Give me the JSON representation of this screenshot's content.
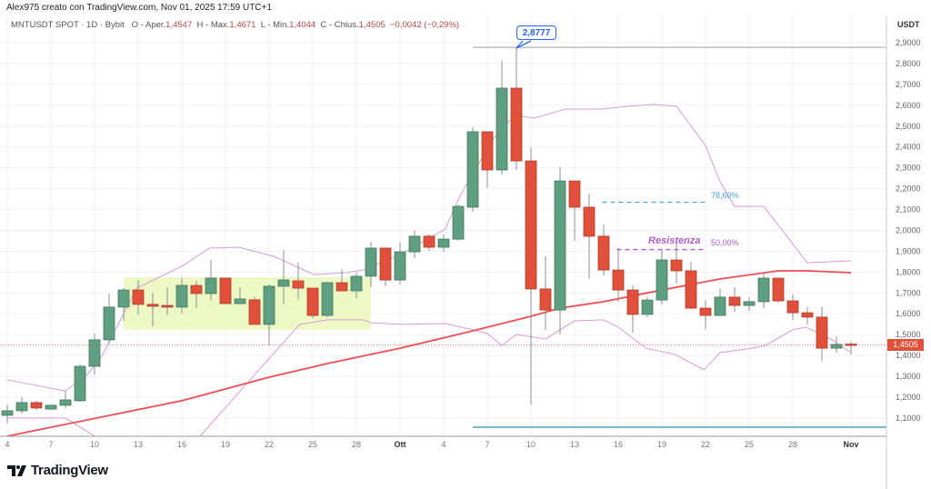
{
  "header": {
    "caption": "Alex975 creato con TradingView.com, Nov 01, 2025 17:59 UTC+1"
  },
  "legend": {
    "symbol": "MNTUSDT SPOT · 1D · Bybit",
    "open_label": "O - Aper.",
    "open": "1,4547",
    "high_label": "H - Max.",
    "high": "1,4671",
    "low_label": "L - Min.",
    "low": "1,4044",
    "close_label": "C - Chius.",
    "close": "1,4505",
    "change": "−0,0042 (−0,29%)"
  },
  "axis": {
    "unit": "USDT",
    "current_price": "1,4505"
  },
  "annotations": {
    "high_callout": "2,8777",
    "fib_786": "78,60%",
    "fib_50": "50,00%",
    "resistance": "Resistenza"
  },
  "footer": {
    "brand": "TradingView"
  },
  "colors": {
    "up": "#5f9e80",
    "down": "#e0503a",
    "ma": "#ef4d55",
    "bands": "#d89ad8",
    "fib786": "#4ba3d9",
    "fib50": "#b05cc8",
    "box": "#eef8c4",
    "blue_line": "#1e8fb0"
  },
  "chart_data": {
    "type": "candlestick",
    "x_unit": "days since Sep 4, 2025",
    "ylim": [
      1.0,
      2.95
    ],
    "y_ticks": [
      "2,9000",
      "2,8000",
      "2,7000",
      "2,6000",
      "2,5000",
      "2,4000",
      "2,3000",
      "2,2000",
      "2,1000",
      "2,0000",
      "1,9000",
      "1,8000",
      "1,7000",
      "1,6000",
      "1,5000",
      "1,4000",
      "1,3000",
      "1,2000",
      "1,1000"
    ],
    "y_tick_values": [
      2.9,
      2.8,
      2.7,
      2.6,
      2.5,
      2.4,
      2.3,
      2.2,
      2.1,
      2.0,
      1.9,
      1.8,
      1.7,
      1.6,
      1.5,
      1.4,
      1.3,
      1.2,
      1.1
    ],
    "x_ticks": [
      {
        "day": 0,
        "label": "4"
      },
      {
        "day": 3,
        "label": "7"
      },
      {
        "day": 6,
        "label": "10"
      },
      {
        "day": 9,
        "label": "13"
      },
      {
        "day": 12,
        "label": "16"
      },
      {
        "day": 15,
        "label": "19"
      },
      {
        "day": 18,
        "label": "22"
      },
      {
        "day": 21,
        "label": "25"
      },
      {
        "day": 24,
        "label": "28"
      },
      {
        "day": 27,
        "label": "Ott"
      },
      {
        "day": 30,
        "label": "4"
      },
      {
        "day": 33,
        "label": "7"
      },
      {
        "day": 36,
        "label": "10"
      },
      {
        "day": 39,
        "label": "13"
      },
      {
        "day": 42,
        "label": "16"
      },
      {
        "day": 45,
        "label": "19"
      },
      {
        "day": 48,
        "label": "22"
      },
      {
        "day": 51,
        "label": "25"
      },
      {
        "day": 54,
        "label": "28"
      },
      {
        "day": 58,
        "label": "Nov"
      }
    ],
    "candles": [
      [
        1.113,
        1.165,
        1.074,
        1.135
      ],
      [
        1.135,
        1.2,
        1.122,
        1.174
      ],
      [
        1.174,
        1.183,
        1.139,
        1.148
      ],
      [
        1.143,
        1.165,
        1.139,
        1.161
      ],
      [
        1.161,
        1.23,
        1.148,
        1.187
      ],
      [
        1.183,
        1.357,
        1.178,
        1.348
      ],
      [
        1.348,
        1.505,
        1.309,
        1.475
      ],
      [
        1.475,
        1.697,
        1.457,
        1.632
      ],
      [
        1.632,
        1.723,
        1.566,
        1.714
      ],
      [
        1.714,
        1.762,
        1.597,
        1.645
      ],
      [
        1.645,
        1.701,
        1.54,
        1.636
      ],
      [
        1.64,
        1.727,
        1.593,
        1.632
      ],
      [
        1.632,
        1.771,
        1.601,
        1.736
      ],
      [
        1.736,
        1.758,
        1.627,
        1.697
      ],
      [
        1.697,
        1.858,
        1.666,
        1.771
      ],
      [
        1.771,
        1.771,
        1.645,
        1.649
      ],
      [
        1.649,
        1.727,
        1.645,
        1.671
      ],
      [
        1.667,
        1.68,
        1.549,
        1.549
      ],
      [
        1.549,
        1.741,
        1.448,
        1.732
      ],
      [
        1.732,
        1.906,
        1.645,
        1.762
      ],
      [
        1.758,
        1.845,
        1.671,
        1.723
      ],
      [
        1.723,
        1.723,
        1.579,
        1.592
      ],
      [
        1.592,
        1.754,
        1.583,
        1.749
      ],
      [
        1.749,
        1.815,
        1.71,
        1.71
      ],
      [
        1.71,
        1.797,
        1.675,
        1.78
      ],
      [
        1.78,
        1.945,
        1.727,
        1.915
      ],
      [
        1.915,
        1.915,
        1.732,
        1.762
      ],
      [
        1.762,
        1.941,
        1.741,
        1.897
      ],
      [
        1.897,
        1.998,
        1.867,
        1.972
      ],
      [
        1.972,
        1.98,
        1.902,
        1.919
      ],
      [
        1.919,
        1.98,
        1.897,
        1.958
      ],
      [
        1.958,
        2.124,
        1.95,
        2.115
      ],
      [
        2.111,
        2.495,
        2.089,
        2.473
      ],
      [
        2.473,
        2.473,
        2.203,
        2.29
      ],
      [
        2.29,
        2.813,
        2.268,
        2.682
      ],
      [
        2.682,
        2.8777,
        2.29,
        2.333
      ],
      [
        2.333,
        2.399,
        1.165,
        1.719
      ],
      [
        1.719,
        1.876,
        1.523,
        1.618
      ],
      [
        1.618,
        2.303,
        1.501,
        2.237
      ],
      [
        2.237,
        2.237,
        1.95,
        2.111
      ],
      [
        2.111,
        2.176,
        1.767,
        1.972
      ],
      [
        1.972,
        2.028,
        1.784,
        1.81
      ],
      [
        1.81,
        1.915,
        1.658,
        1.714
      ],
      [
        1.714,
        1.736,
        1.509,
        1.597
      ],
      [
        1.597,
        1.68,
        1.584,
        1.666
      ],
      [
        1.666,
        1.906,
        1.645,
        1.858
      ],
      [
        1.858,
        1.937,
        1.745,
        1.806
      ],
      [
        1.806,
        1.849,
        1.623,
        1.627
      ],
      [
        1.627,
        1.666,
        1.527,
        1.592
      ],
      [
        1.592,
        1.719,
        1.592,
        1.68
      ],
      [
        1.68,
        1.727,
        1.61,
        1.64
      ],
      [
        1.64,
        1.68,
        1.614,
        1.658
      ],
      [
        1.658,
        1.797,
        1.627,
        1.771
      ],
      [
        1.771,
        1.771,
        1.653,
        1.662
      ],
      [
        1.662,
        1.693,
        1.571,
        1.605
      ],
      [
        1.605,
        1.631,
        1.549,
        1.584
      ],
      [
        1.584,
        1.636,
        1.374,
        1.435
      ],
      [
        1.435,
        1.492,
        1.413,
        1.453
      ],
      [
        1.4547,
        1.4671,
        1.4044,
        1.4505
      ]
    ],
    "ma": [
      [
        0,
        1.013
      ],
      [
        12,
        1.183
      ],
      [
        18,
        1.296
      ],
      [
        22,
        1.361
      ],
      [
        27,
        1.435
      ],
      [
        32,
        1.518
      ],
      [
        36,
        1.588
      ],
      [
        38,
        1.627
      ],
      [
        41,
        1.658
      ],
      [
        45,
        1.714
      ],
      [
        49,
        1.767
      ],
      [
        53,
        1.806
      ],
      [
        55,
        1.806
      ],
      [
        58,
        1.797
      ]
    ],
    "upper_band": [
      [
        0,
        1.283
      ],
      [
        4,
        1.23
      ],
      [
        5.5,
        1.309
      ],
      [
        6.5,
        1.396
      ],
      [
        8.9,
        1.723
      ],
      [
        12,
        1.828
      ],
      [
        13.9,
        1.915
      ],
      [
        15.9,
        1.919
      ],
      [
        18.3,
        1.876
      ],
      [
        21.1,
        1.788
      ],
      [
        23.25,
        1.797
      ],
      [
        24.5,
        1.81
      ],
      [
        27,
        1.884
      ],
      [
        30.1,
        2.006
      ],
      [
        31.2,
        2.176
      ],
      [
        33.4,
        2.438
      ],
      [
        34.5,
        2.525
      ],
      [
        35.4,
        2.547
      ],
      [
        36.2,
        2.538
      ],
      [
        38.4,
        2.582
      ],
      [
        40.9,
        2.582
      ],
      [
        42.6,
        2.595
      ],
      [
        44.5,
        2.604
      ],
      [
        46,
        2.595
      ],
      [
        48,
        2.407
      ],
      [
        49,
        2.233
      ],
      [
        50,
        2.115
      ],
      [
        52,
        2.115
      ],
      [
        55,
        1.845
      ],
      [
        58,
        1.854
      ]
    ],
    "lower_band": [
      [
        0,
        1.1
      ],
      [
        4,
        1.1
      ],
      [
        6,
        1.013
      ],
      [
        8,
        0.95
      ],
      [
        11,
        0.95
      ],
      [
        13.25,
        1.013
      ],
      [
        18.25,
        1.405
      ],
      [
        20.1,
        1.549
      ],
      [
        22,
        1.571
      ],
      [
        24.5,
        1.571
      ],
      [
        25,
        1.557
      ],
      [
        27,
        1.549
      ],
      [
        30.1,
        1.553
      ],
      [
        32,
        1.523
      ],
      [
        33,
        1.505
      ],
      [
        34,
        1.448
      ],
      [
        35,
        1.501
      ],
      [
        37,
        1.479
      ],
      [
        39,
        1.566
      ],
      [
        41,
        1.571
      ],
      [
        42,
        1.536
      ],
      [
        43.9,
        1.435
      ],
      [
        45.9,
        1.405
      ],
      [
        47.9,
        1.331
      ],
      [
        49,
        1.414
      ],
      [
        51.2,
        1.435
      ],
      [
        52.1,
        1.448
      ],
      [
        54,
        1.523
      ],
      [
        54.9,
        1.536
      ],
      [
        56.6,
        1.479
      ],
      [
        58,
        1.414
      ]
    ],
    "zone": {
      "from_day": 8,
      "to_day": 25,
      "top": 1.775,
      "bottom": 1.523
    },
    "high_line": {
      "from_day": 32,
      "price": 2.8777
    },
    "blue_line": {
      "from_day": 32,
      "price": 1.056
    },
    "fib_786_line": {
      "from_day": 40.9,
      "to_day": 48,
      "price": 2.135
    },
    "fib_50_line": {
      "from_day": 41.9,
      "to_day": 48,
      "price": 1.908
    },
    "current_price": 1.4505
  }
}
